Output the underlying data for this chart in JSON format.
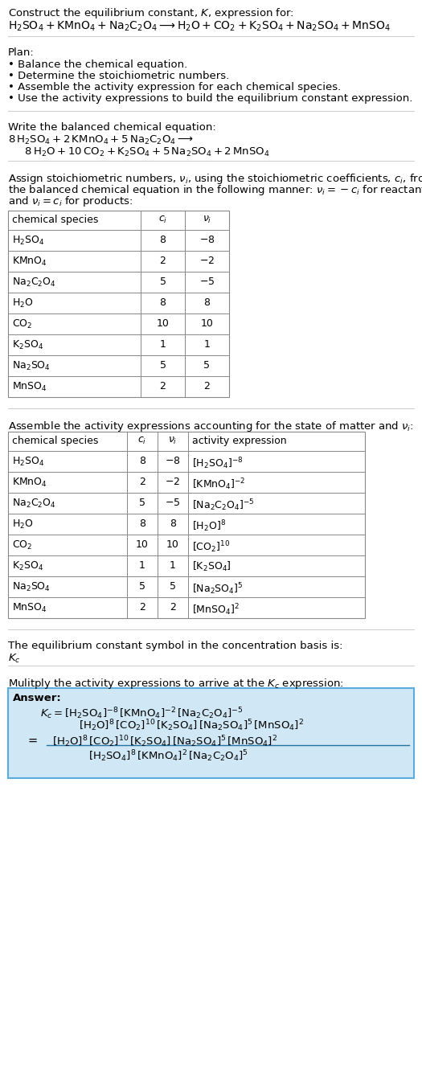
{
  "bg_color": "#ffffff",
  "title_line1": "Construct the equilibrium constant, $K$, expression for:",
  "reaction_unbalanced": "$\\mathrm{H_2SO_4 + KMnO_4 + Na_2C_2O_4 \\longrightarrow H_2O + CO_2 + K_2SO_4 + Na_2SO_4 + MnSO_4}$",
  "plan_items": [
    "\\bullet Balance the chemical equation.",
    "\\bullet Determine the stoichiometric numbers.",
    "\\bullet Assemble the activity expression for each chemical species.",
    "\\bullet Use the activity expressions to build the equilibrium constant expression."
  ],
  "balanced_header": "Write the balanced chemical equation:",
  "balanced_line1": "$8\\,\\mathrm{H_2SO_4} + 2\\,\\mathrm{KMnO_4} + 5\\,\\mathrm{Na_2C_2O_4} \\longrightarrow$",
  "balanced_line2": "$\\quad 8\\,\\mathrm{H_2O} + 10\\,\\mathrm{CO_2} + \\mathrm{K_2SO_4} + 5\\,\\mathrm{Na_2SO_4} + 2\\,\\mathrm{MnSO_4}$",
  "stoich_header_parts": [
    "Assign stoichiometric numbers, $\\nu_i$, using the stoichiometric coefficients, $c_i$, from",
    "the balanced chemical equation in the following manner: $\\nu_i = -c_i$ for reactants",
    "and $\\nu_i = c_i$ for products:"
  ],
  "table1_rows": [
    [
      "$\\mathrm{H_2SO_4}$",
      "8",
      "$-8$"
    ],
    [
      "$\\mathrm{KMnO_4}$",
      "2",
      "$-2$"
    ],
    [
      "$\\mathrm{Na_2C_2O_4}$",
      "5",
      "$-5$"
    ],
    [
      "$\\mathrm{H_2O}$",
      "8",
      "8"
    ],
    [
      "$\\mathrm{CO_2}$",
      "10",
      "10"
    ],
    [
      "$\\mathrm{K_2SO_4}$",
      "1",
      "1"
    ],
    [
      "$\\mathrm{Na_2SO_4}$",
      "5",
      "5"
    ],
    [
      "$\\mathrm{MnSO_4}$",
      "2",
      "2"
    ]
  ],
  "activity_header": "Assemble the activity expressions accounting for the state of matter and $\\nu_i$:",
  "table2_rows": [
    [
      "$\\mathrm{H_2SO_4}$",
      "8",
      "$-8$",
      "$[\\mathrm{H_2SO_4}]^{-8}$"
    ],
    [
      "$\\mathrm{KMnO_4}$",
      "2",
      "$-2$",
      "$[\\mathrm{KMnO_4}]^{-2}$"
    ],
    [
      "$\\mathrm{Na_2C_2O_4}$",
      "5",
      "$-5$",
      "$[\\mathrm{Na_2C_2O_4}]^{-5}$"
    ],
    [
      "$\\mathrm{H_2O}$",
      "8",
      "8",
      "$[\\mathrm{H_2O}]^{8}$"
    ],
    [
      "$\\mathrm{CO_2}$",
      "10",
      "10",
      "$[\\mathrm{CO_2}]^{10}$"
    ],
    [
      "$\\mathrm{K_2SO_4}$",
      "1",
      "1",
      "$[\\mathrm{K_2SO_4}]$"
    ],
    [
      "$\\mathrm{Na_2SO_4}$",
      "5",
      "5",
      "$[\\mathrm{Na_2SO_4}]^{5}$"
    ],
    [
      "$\\mathrm{MnSO_4}$",
      "2",
      "2",
      "$[\\mathrm{MnSO_4}]^{2}$"
    ]
  ],
  "kc_header": "The equilibrium constant symbol in the concentration basis is:",
  "kc_symbol": "$K_c$",
  "multiply_header": "Mulitply the activity expressions to arrive at the $K_c$ expression:",
  "answer_bg": "#d0e8f5",
  "answer_border": "#5aace0",
  "answer_label": "Answer:",
  "kc_eq_line1": "$K_c = [\\mathrm{H_2SO_4}]^{-8}\\,[\\mathrm{KMnO_4}]^{-2}\\,[\\mathrm{Na_2C_2O_4}]^{-5}$",
  "kc_eq_line2": "$[\\mathrm{H_2O}]^{8}\\,[\\mathrm{CO_2}]^{10}\\,[\\mathrm{K_2SO_4}]\\,[\\mathrm{Na_2SO_4}]^{5}\\,[\\mathrm{MnSO_4}]^{2}$",
  "kc_num": "$[\\mathrm{H_2O}]^{8}\\,[\\mathrm{CO_2}]^{10}\\,[\\mathrm{K_2SO_4}]\\,[\\mathrm{Na_2SO_4}]^{5}\\,[\\mathrm{MnSO_4}]^{2}$",
  "kc_den": "$[\\mathrm{H_2SO_4}]^{8}\\,[\\mathrm{KMnO_4}]^{2}\\,[\\mathrm{Na_2C_2O_4}]^{5}$",
  "font_size": 9.5,
  "line_color": "#cccccc"
}
